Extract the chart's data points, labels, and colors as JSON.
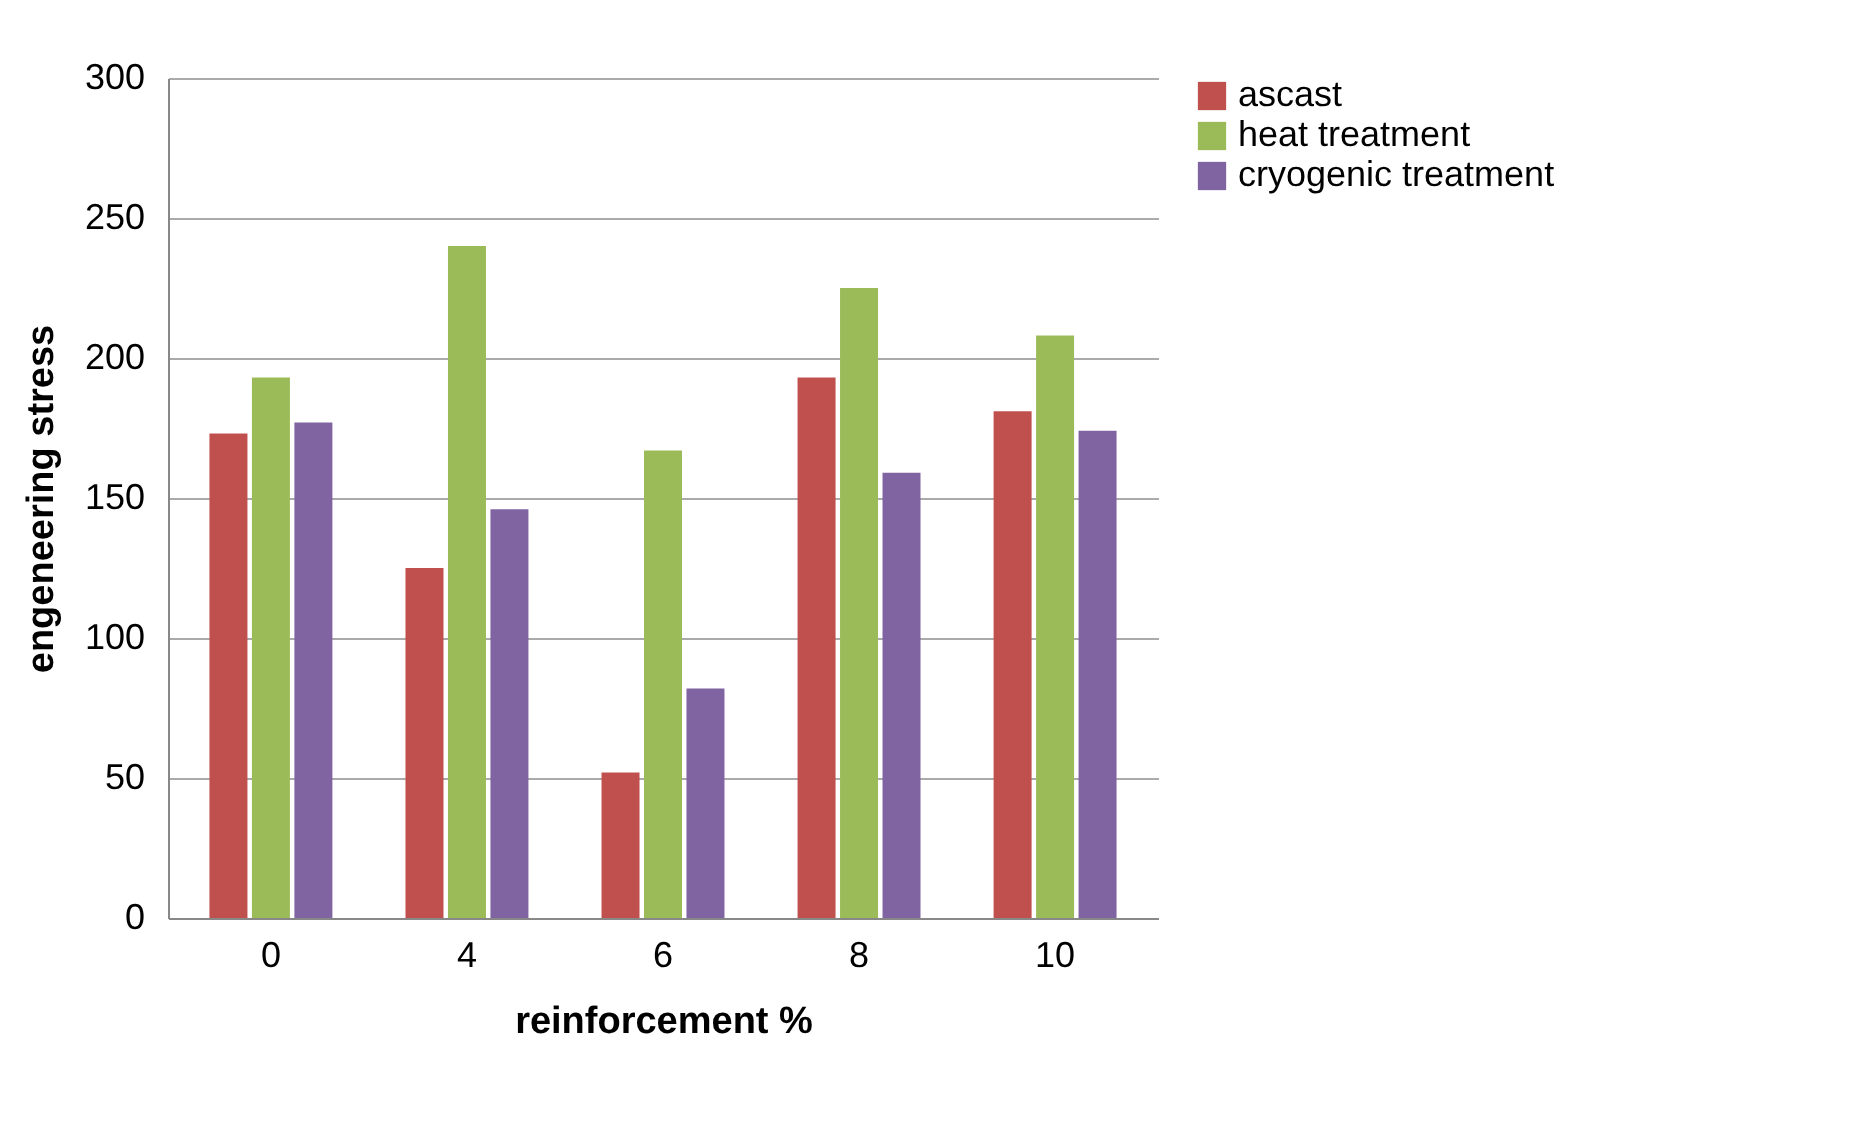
{
  "chart_data": {
    "type": "bar",
    "xlabel": "reinforcement %",
    "ylabel": "engeneering stress",
    "categories": [
      "0",
      "4",
      "6",
      "8",
      "10"
    ],
    "series": [
      {
        "name": "ascast",
        "color": "#c0504d",
        "values": [
          173,
          125,
          52,
          193,
          181
        ]
      },
      {
        "name": "heat treatment",
        "color": "#9bbb59",
        "values": [
          193,
          240,
          167,
          225,
          208
        ]
      },
      {
        "name": "cryogenic treatment",
        "color": "#8064a2",
        "values": [
          177,
          146,
          82,
          159,
          174
        ]
      }
    ],
    "ylim": [
      0,
      300
    ],
    "yticks": [
      0,
      50,
      100,
      150,
      200,
      250,
      300
    ],
    "grid": "y",
    "legend": "right"
  }
}
